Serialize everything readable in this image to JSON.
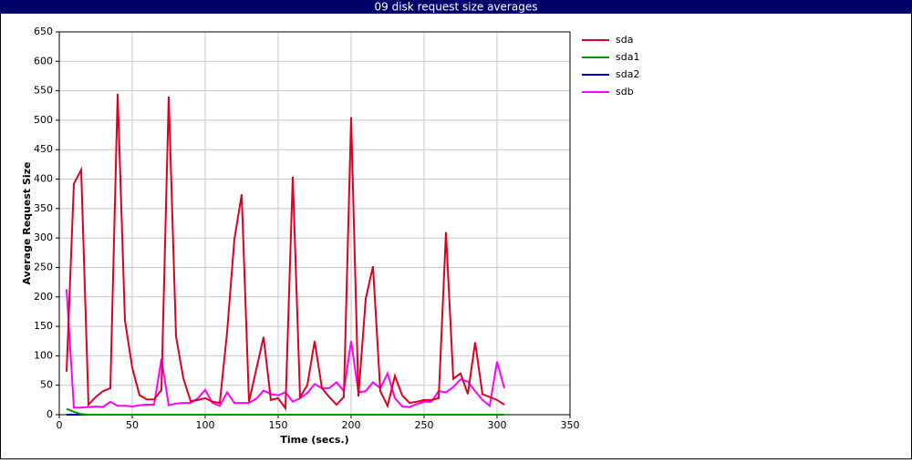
{
  "chart_data": {
    "type": "line",
    "title": "09 disk request size averages",
    "x_label": "Time (secs.)",
    "y_label": "Average Request Size",
    "xlim": [
      0,
      350
    ],
    "xticks": [
      0,
      50,
      100,
      150,
      200,
      250,
      300,
      350
    ],
    "ylim": [
      0,
      650
    ],
    "yticks": [
      0,
      50,
      100,
      150,
      200,
      250,
      300,
      350,
      400,
      450,
      500,
      550,
      600,
      650
    ],
    "grid": true,
    "legend": "right",
    "x": [
      5,
      10,
      15,
      20,
      25,
      30,
      35,
      40,
      45,
      50,
      55,
      60,
      65,
      70,
      75,
      80,
      85,
      90,
      95,
      100,
      105,
      110,
      115,
      120,
      125,
      130,
      135,
      140,
      145,
      150,
      155,
      160,
      165,
      170,
      175,
      180,
      185,
      190,
      195,
      200,
      205,
      210,
      215,
      220,
      225,
      230,
      235,
      240,
      245,
      250,
      255,
      260,
      265,
      270,
      275,
      280,
      285,
      290,
      295,
      300,
      305
    ],
    "series": [
      {
        "name": "sda",
        "color": "#dd0022",
        "values": [
          73,
          392,
          416,
          17,
          30,
          40,
          45,
          545,
          160,
          80,
          33,
          26,
          26,
          42,
          540,
          133,
          62,
          23,
          25,
          28,
          22,
          20,
          140,
          298,
          374,
          22,
          77,
          132,
          25,
          28,
          11,
          404,
          30,
          50,
          125,
          45,
          30,
          17,
          30,
          505,
          31,
          197,
          252,
          40,
          15,
          66,
          33,
          20,
          22,
          25,
          25,
          28,
          310,
          61,
          70,
          35,
          123,
          35,
          30,
          25,
          17
        ]
      },
      {
        "name": "sda1",
        "color": "#009900",
        "values": [
          10,
          5,
          1,
          0,
          0,
          0,
          0,
          0,
          0,
          0,
          0,
          0,
          0,
          0,
          0,
          0,
          0,
          0,
          0,
          0,
          0,
          0,
          0,
          0,
          0,
          0,
          0,
          0,
          0,
          0,
          0,
          0,
          0,
          0,
          0,
          0,
          0,
          0,
          0,
          0,
          0,
          0,
          0,
          0,
          0,
          0,
          0,
          0,
          0,
          0,
          0,
          0,
          0,
          0,
          0,
          0,
          0,
          0,
          0,
          0,
          0
        ]
      },
      {
        "name": "sda2",
        "color": "#0000cc",
        "values": [
          0,
          0,
          0,
          0,
          0,
          0,
          0,
          0,
          0,
          0,
          0,
          0,
          0,
          0,
          0,
          0,
          0,
          0,
          0,
          0,
          0,
          0,
          0,
          0,
          0,
          0,
          0,
          0,
          0,
          0,
          0,
          0,
          0,
          0,
          0,
          0,
          0,
          0,
          0,
          0,
          0,
          0,
          0,
          0,
          0,
          0,
          0,
          0,
          0,
          0,
          0,
          0,
          0,
          0,
          0,
          0,
          0,
          0,
          0,
          0,
          0
        ]
      },
      {
        "name": "sdb",
        "color": "#ff00ff",
        "values": [
          213,
          12,
          12,
          13,
          14,
          13,
          22,
          15,
          15,
          14,
          16,
          17,
          17,
          95,
          16,
          19,
          20,
          20,
          28,
          42,
          20,
          15,
          38,
          20,
          20,
          20,
          27,
          41,
          35,
          33,
          38,
          22,
          28,
          37,
          52,
          45,
          45,
          55,
          40,
          125,
          38,
          40,
          55,
          45,
          70,
          28,
          14,
          13,
          18,
          22,
          22,
          40,
          38,
          47,
          60,
          56,
          40,
          25,
          15,
          90,
          45
        ]
      }
    ]
  }
}
